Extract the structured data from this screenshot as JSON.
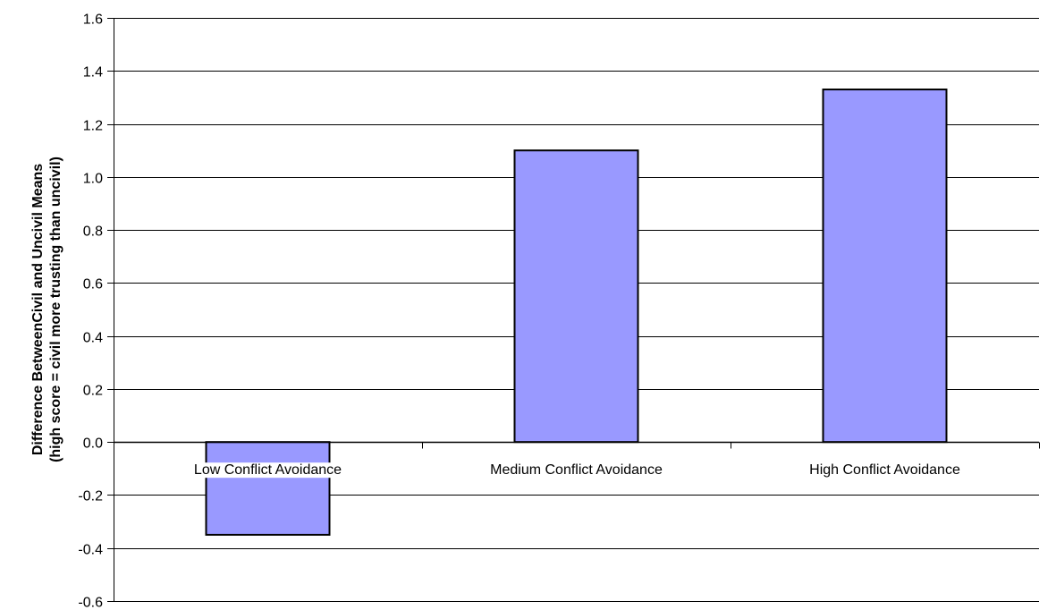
{
  "chart_data": {
    "type": "bar",
    "categories": [
      "Low Conflict Avoidance",
      "Medium Conflict Avoidance",
      "High Conflict Avoidance"
    ],
    "values": [
      -0.35,
      1.1,
      1.33
    ],
    "title": "",
    "xlabel": "",
    "ylabel_lines": [
      "Difference BetweenCivil and Uncivil Means",
      "(high score = civil more trusting than uncivil)"
    ],
    "ylim": [
      -0.6,
      1.6
    ],
    "yticks": [
      "1.6",
      "1.4",
      "1.2",
      "1.0",
      "0.8",
      "0.6",
      "0.4",
      "0.2",
      "0.0",
      "-0.2",
      "-0.4",
      "-0.6"
    ],
    "grid": true,
    "bar_color": "#9999ff",
    "bar_edge_color": "#000000",
    "grid_color": "#000000"
  }
}
